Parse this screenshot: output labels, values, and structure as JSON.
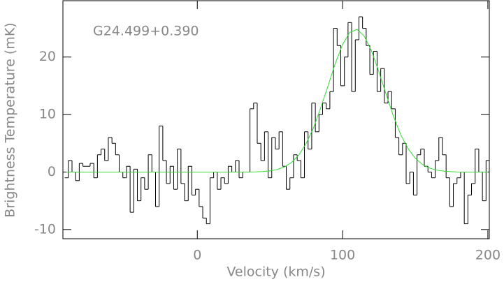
{
  "chart_data": {
    "type": "step",
    "annotation": "G24.499+0.390",
    "xlabel": "Velocity (km/s)",
    "ylabel": "Brightness Temperature (mK)",
    "xlim": [
      -92.5,
      201
    ],
    "ylim": [
      -11.6,
      29.8
    ],
    "xticks": [
      0,
      100,
      200
    ],
    "yticks": [
      -10,
      0,
      10,
      20
    ],
    "series": [
      {
        "name": "spectrum",
        "color": "#000000",
        "x": [
          -90,
          -87.5,
          -85,
          -82.5,
          -80,
          -77.5,
          -75,
          -72.5,
          -70,
          -67.5,
          -65,
          -62.5,
          -60,
          -57.5,
          -55,
          -52.5,
          -50,
          -47.5,
          -45,
          -42.5,
          -40,
          -37.5,
          -35,
          -32.5,
          -30,
          -27.5,
          -25,
          -22.5,
          -20,
          -17.5,
          -15,
          -12.5,
          -10,
          -7.5,
          -5,
          -2.5,
          0,
          2.5,
          5,
          7.5,
          10,
          12.5,
          15,
          17.5,
          20,
          22.5,
          25,
          27.5,
          30,
          32.5,
          35,
          37.5,
          40,
          42.5,
          45,
          47.5,
          50,
          52.5,
          55,
          57.5,
          60,
          62.5,
          65,
          67.5,
          70,
          72.5,
          75,
          77.5,
          80,
          82.5,
          85,
          87.5,
          90,
          92.5,
          95,
          97.5,
          100,
          102.5,
          105,
          107.5,
          110,
          112.5,
          115,
          117.5,
          120,
          122.5,
          125,
          127.5,
          130,
          132.5,
          135,
          137.5,
          140,
          142.5,
          145,
          147.5,
          150,
          152.5,
          155,
          157.5,
          160,
          162.5,
          165,
          167.5,
          170,
          172.5,
          175,
          177.5,
          180,
          182.5,
          185,
          187.5,
          190,
          192.5,
          195,
          197.5,
          200
        ],
        "values": [
          -1,
          2,
          0,
          -1.5,
          1.5,
          1,
          1,
          1.5,
          -1,
          3,
          4,
          2,
          6,
          5,
          3,
          0,
          -1,
          1,
          -7,
          0.5,
          -5,
          -1,
          -3,
          3,
          0,
          -6,
          8,
          2,
          -2,
          1,
          -3,
          4,
          -2,
          -5,
          1,
          -4,
          -3,
          -6,
          -8,
          -9,
          -1,
          0,
          -3,
          -1,
          -2,
          1,
          0,
          2,
          -1,
          0,
          0,
          11,
          12,
          5,
          2,
          7,
          -1,
          6,
          4,
          7,
          1,
          -3,
          -1,
          3,
          2,
          -1,
          7,
          4,
          12,
          7,
          10,
          12,
          11,
          14,
          25,
          22,
          15,
          20,
          26,
          14,
          23,
          27,
          25,
          22,
          17,
          21,
          14,
          18,
          12,
          14,
          11,
          6,
          3,
          5,
          -2,
          0,
          -4,
          3,
          4,
          1,
          0,
          -1,
          2,
          6,
          3,
          -1,
          -6,
          -2,
          -1,
          0,
          -9,
          -4,
          -2,
          4,
          0,
          -5,
          2
        ]
      },
      {
        "name": "fit",
        "color": "#33dd33",
        "x": [
          -90,
          -85,
          -80,
          -75,
          -70,
          -65,
          -60,
          -55,
          -50,
          -45,
          -40,
          -35,
          -30,
          -25,
          -20,
          -15,
          -10,
          -5,
          0,
          5,
          10,
          15,
          20,
          25,
          30,
          35,
          40,
          45,
          50,
          55,
          60,
          65,
          70,
          75,
          80,
          85,
          90,
          95,
          100,
          105,
          110,
          115,
          120,
          125,
          130,
          135,
          140,
          145,
          150,
          155,
          160,
          165,
          170,
          175,
          180,
          185,
          190,
          195,
          200
        ],
        "values": [
          0,
          0,
          0,
          0,
          0,
          0,
          0,
          0,
          0,
          0,
          0,
          0,
          0,
          0,
          0,
          0,
          0,
          0,
          0,
          0,
          0,
          0,
          0,
          0,
          0,
          0,
          0.03,
          0.09,
          0.2,
          0.44,
          0.89,
          1.7,
          3.0,
          5.0,
          7.7,
          11.2,
          15.0,
          18.9,
          22.2,
          24.3,
          24.8,
          23.6,
          21.0,
          17.4,
          13.5,
          9.7,
          6.5,
          4.1,
          2.4,
          1.3,
          0.68,
          0.32,
          0.14,
          0.06,
          0,
          0,
          0,
          0,
          0
        ]
      }
    ]
  }
}
